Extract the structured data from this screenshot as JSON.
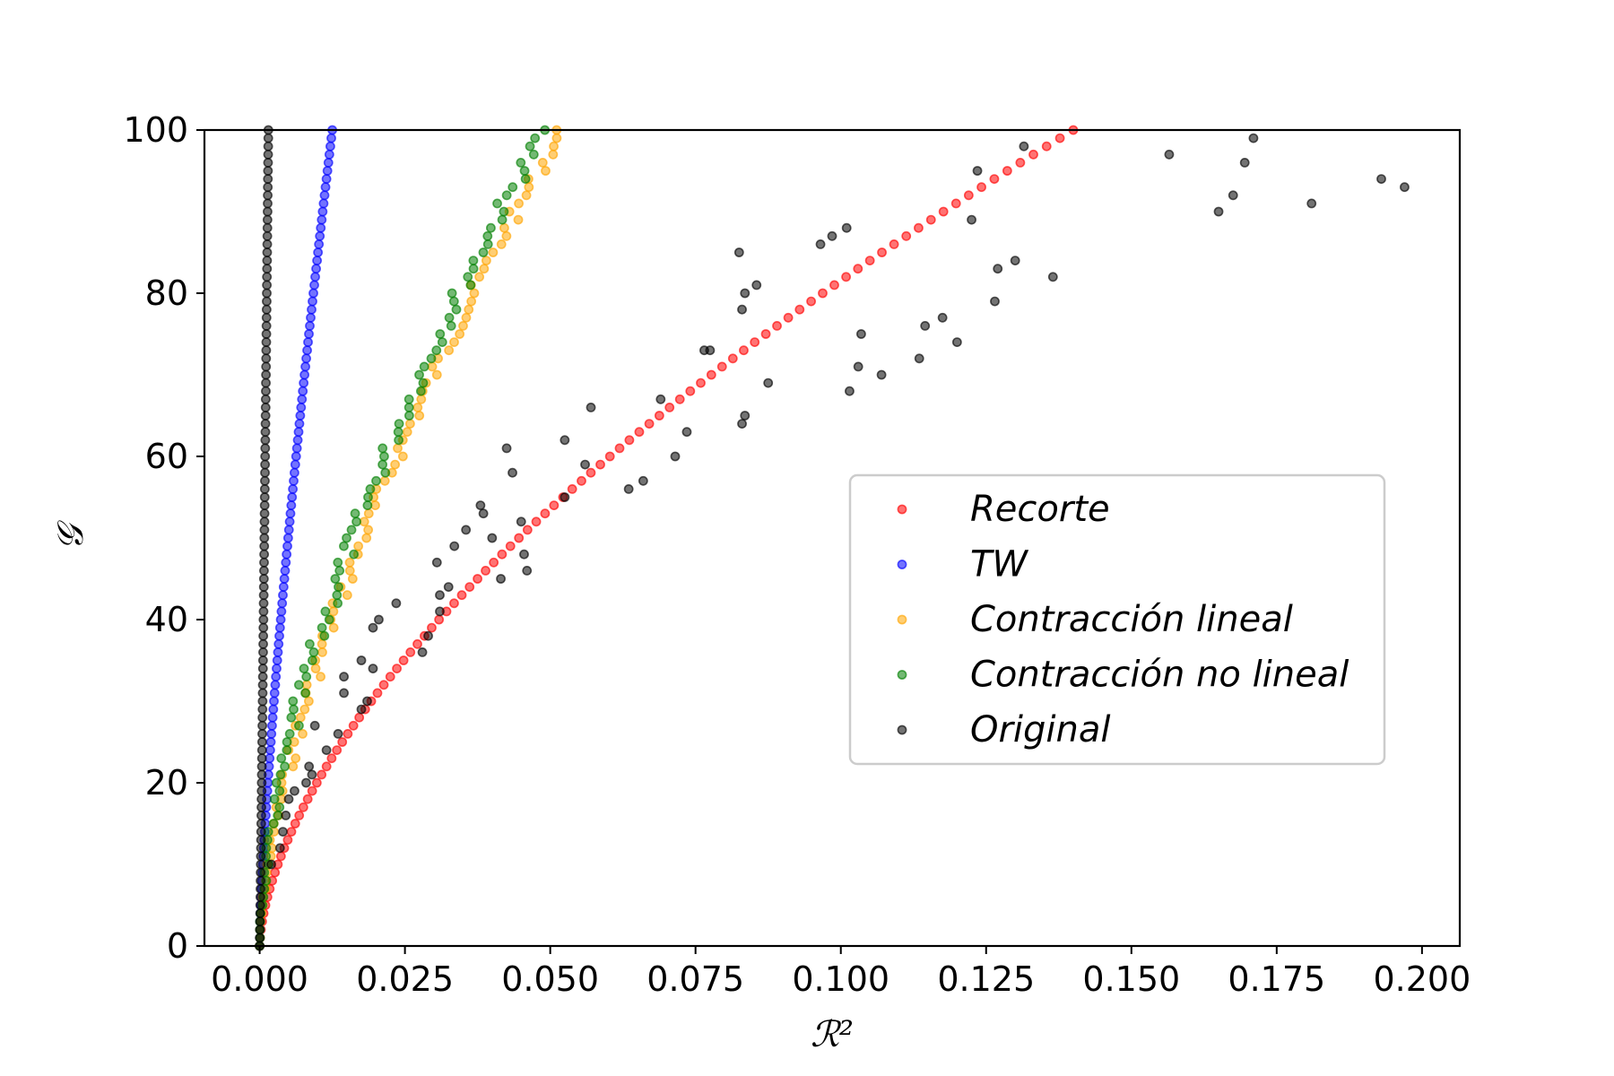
{
  "chart_data": {
    "type": "scatter",
    "title": "",
    "xlabel": "ℛ²",
    "ylabel": "𝒢",
    "xlim": [
      -0.0095,
      0.2065
    ],
    "ylim": [
      0,
      100
    ],
    "xticks": [
      0.0,
      0.025,
      0.05,
      0.075,
      0.1,
      0.125,
      0.15,
      0.175,
      0.2
    ],
    "xtick_labels": [
      "0.000",
      "0.025",
      "0.050",
      "0.075",
      "0.100",
      "0.125",
      "0.150",
      "0.175",
      "0.200"
    ],
    "yticks": [
      0,
      20,
      40,
      60,
      80,
      100
    ],
    "ytick_labels": [
      "0",
      "20",
      "40",
      "60",
      "80",
      "100"
    ],
    "grid": false,
    "legend_position": "center-right",
    "series": [
      {
        "name": "Recorte",
        "color": "#ff0000",
        "model": {
          "kind": "power",
          "a": 0.14,
          "p": 1.65,
          "n": 101
        }
      },
      {
        "name": "TW",
        "color": "#0000ff",
        "model": {
          "kind": "power",
          "a": 0.0125,
          "p": 1.35,
          "n": 101
        }
      },
      {
        "name": "Contracción lineal",
        "color": "#ffa500",
        "model": {
          "kind": "power",
          "a": 0.052,
          "p": 1.55,
          "n": 101,
          "jitter": 0.0012
        }
      },
      {
        "name": "Contracción no lineal",
        "color": "#008000",
        "model": {
          "kind": "power",
          "a": 0.049,
          "p": 1.6,
          "n": 101,
          "jitter": 0.0014
        }
      },
      {
        "name": "Original",
        "color": "#000000",
        "points_on_axis": {
          "x": 0.0015,
          "ymax": 100,
          "n": 101
        },
        "points": [
          [
            0.002,
            10
          ],
          [
            0.0035,
            12
          ],
          [
            0.004,
            14
          ],
          [
            0.0045,
            16
          ],
          [
            0.005,
            18
          ],
          [
            0.006,
            19
          ],
          [
            0.008,
            20
          ],
          [
            0.009,
            21
          ],
          [
            0.0085,
            22
          ],
          [
            0.0095,
            27
          ],
          [
            0.0115,
            24
          ],
          [
            0.0135,
            26
          ],
          [
            0.0145,
            31
          ],
          [
            0.0145,
            33
          ],
          [
            0.0175,
            29
          ],
          [
            0.0185,
            30
          ],
          [
            0.0195,
            34
          ],
          [
            0.0195,
            39
          ],
          [
            0.0205,
            40
          ],
          [
            0.0175,
            35
          ],
          [
            0.0235,
            42
          ],
          [
            0.028,
            36
          ],
          [
            0.029,
            38
          ],
          [
            0.0305,
            47
          ],
          [
            0.031,
            43
          ],
          [
            0.031,
            41
          ],
          [
            0.0325,
            44
          ],
          [
            0.0335,
            49
          ],
          [
            0.0355,
            51
          ],
          [
            0.04,
            50
          ],
          [
            0.0385,
            53
          ],
          [
            0.038,
            54
          ],
          [
            0.0415,
            45
          ],
          [
            0.0425,
            61
          ],
          [
            0.0435,
            58
          ],
          [
            0.045,
            52
          ],
          [
            0.0455,
            48
          ],
          [
            0.046,
            46
          ],
          [
            0.0525,
            62
          ],
          [
            0.0525,
            55
          ],
          [
            0.056,
            59
          ],
          [
            0.057,
            66
          ],
          [
            0.0635,
            56
          ],
          [
            0.066,
            57
          ],
          [
            0.069,
            67
          ],
          [
            0.0715,
            60
          ],
          [
            0.0735,
            63
          ],
          [
            0.0765,
            73
          ],
          [
            0.0775,
            73
          ],
          [
            0.0825,
            85
          ],
          [
            0.083,
            78
          ],
          [
            0.0835,
            80
          ],
          [
            0.083,
            64
          ],
          [
            0.0835,
            65
          ],
          [
            0.0855,
            81
          ],
          [
            0.0875,
            69
          ],
          [
            0.0965,
            86
          ],
          [
            0.0985,
            87
          ],
          [
            0.101,
            88
          ],
          [
            0.1015,
            68
          ],
          [
            0.103,
            71
          ],
          [
            0.1035,
            75
          ],
          [
            0.107,
            70
          ],
          [
            0.1135,
            72
          ],
          [
            0.1145,
            76
          ],
          [
            0.1175,
            77
          ],
          [
            0.12,
            74
          ],
          [
            0.1225,
            89
          ],
          [
            0.1235,
            95
          ],
          [
            0.1265,
            79
          ],
          [
            0.127,
            83
          ],
          [
            0.13,
            84
          ],
          [
            0.1315,
            98
          ],
          [
            0.1365,
            82
          ],
          [
            0.1565,
            97
          ],
          [
            0.165,
            90
          ],
          [
            0.1675,
            92
          ],
          [
            0.1695,
            96
          ],
          [
            0.171,
            99
          ],
          [
            0.181,
            91
          ],
          [
            0.193,
            94
          ],
          [
            0.197,
            93
          ]
        ]
      }
    ]
  }
}
